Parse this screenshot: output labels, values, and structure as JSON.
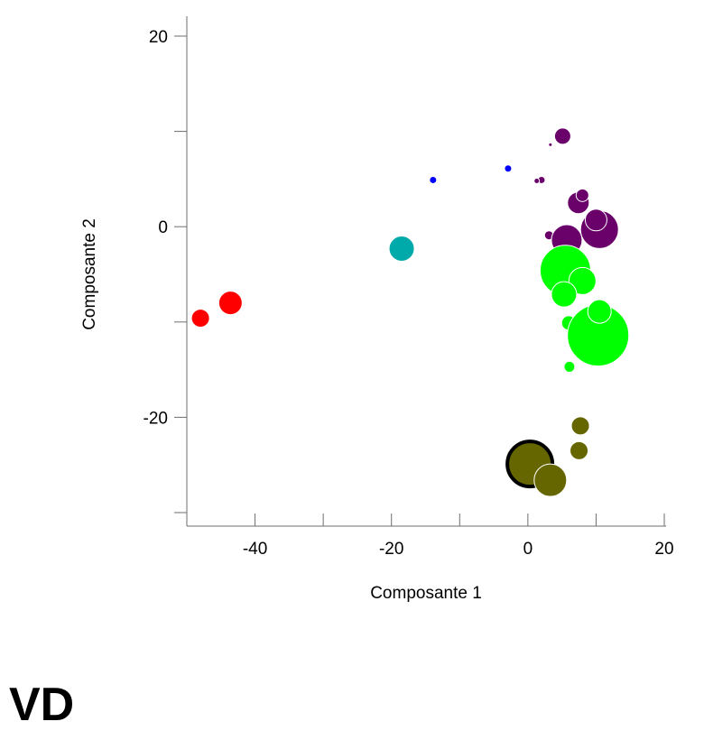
{
  "chart_data": {
    "type": "scatter",
    "title": "",
    "xlabel": "Composante 1",
    "ylabel": "Composante 2",
    "xlim": [
      -50,
      23
    ],
    "ylim": [
      -30.5,
      22
    ],
    "xticks": [
      -50,
      -40,
      -30,
      -20,
      -10,
      0,
      10,
      20
    ],
    "xtick_labels": [
      "",
      "-40",
      "",
      "-20",
      "",
      "0",
      "",
      "20"
    ],
    "yticks": [
      20,
      10,
      0,
      -10,
      -20,
      -30
    ],
    "ytick_labels": [
      "20",
      "",
      "0",
      "",
      "-20",
      ""
    ],
    "grid": false,
    "legend": "none",
    "points": [
      {
        "x": -48.0,
        "y": -9.6,
        "size": 10,
        "color": "#ff0000"
      },
      {
        "x": -43.6,
        "y": -8.0,
        "size": 13,
        "color": "#ff0000"
      },
      {
        "x": -18.5,
        "y": -2.3,
        "size": 14,
        "color": "#00aaaa"
      },
      {
        "x": -13.9,
        "y": 4.9,
        "size": 4,
        "color": "#0000ff"
      },
      {
        "x": -2.9,
        "y": 6.1,
        "size": 4,
        "color": "#0000ff"
      },
      {
        "x": 5.1,
        "y": 9.5,
        "size": 9,
        "color": "#6a006a"
      },
      {
        "x": 3.3,
        "y": 8.6,
        "size": 2,
        "color": "#6a006a"
      },
      {
        "x": 2.0,
        "y": 4.9,
        "size": 4,
        "color": "#6a006a"
      },
      {
        "x": 1.3,
        "y": 4.8,
        "size": 3,
        "color": "#6a006a"
      },
      {
        "x": 7.4,
        "y": 2.5,
        "size": 12,
        "color": "#6a006a"
      },
      {
        "x": 8.0,
        "y": 3.3,
        "size": 7,
        "color": "#6a006a"
      },
      {
        "x": 10.5,
        "y": -0.3,
        "size": 21,
        "color": "#6a006a"
      },
      {
        "x": 10.0,
        "y": 0.7,
        "size": 12,
        "color": "#6a006a"
      },
      {
        "x": 3.1,
        "y": -0.9,
        "size": 5,
        "color": "#6a006a"
      },
      {
        "x": 5.7,
        "y": -1.4,
        "size": 17,
        "color": "#6a006a"
      },
      {
        "x": 5.5,
        "y": -4.6,
        "size": 28,
        "color": "#00ff00"
      },
      {
        "x": 8.0,
        "y": -5.7,
        "size": 15,
        "color": "#00ff00"
      },
      {
        "x": 5.3,
        "y": -7.1,
        "size": 14,
        "color": "#00ff00"
      },
      {
        "x": 6.0,
        "y": -10.1,
        "size": 8,
        "color": "#00ff00"
      },
      {
        "x": 10.3,
        "y": -11.4,
        "size": 34,
        "color": "#00ff00"
      },
      {
        "x": 10.5,
        "y": -8.9,
        "size": 13,
        "color": "#00ff00"
      },
      {
        "x": 6.1,
        "y": -14.7,
        "size": 6,
        "color": "#00ff00"
      },
      {
        "x": 7.7,
        "y": -20.9,
        "size": 10,
        "color": "#666600"
      },
      {
        "x": 7.5,
        "y": -23.5,
        "size": 10,
        "color": "#666600"
      },
      {
        "x": 0.3,
        "y": -24.9,
        "size": 25,
        "color": "#666600",
        "highlighted": true
      },
      {
        "x": 3.3,
        "y": -26.6,
        "size": 18,
        "color": "#666600"
      }
    ]
  },
  "caption": "VD"
}
